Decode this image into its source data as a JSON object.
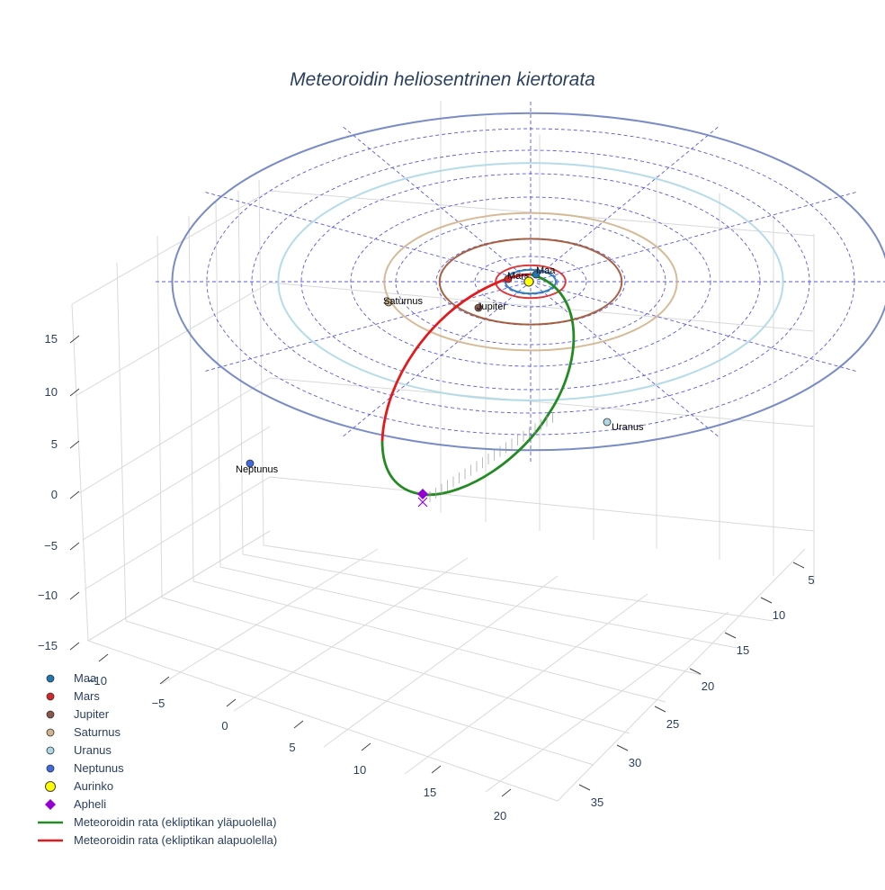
{
  "chart_data": {
    "type": "scatter3d",
    "title": "Meteoroidin heliosentrinen kiertorata",
    "axes": {
      "z_ticks": [
        "15",
        "10",
        "5",
        "0",
        "−5",
        "−10",
        "−15"
      ],
      "x_ticks": [
        "−10",
        "−5",
        "0",
        "5",
        "10",
        "15",
        "20"
      ],
      "y_ticks": [
        "5",
        "10",
        "15",
        "20",
        "25",
        "30",
        "35"
      ],
      "grid": true
    },
    "planets": [
      {
        "name": "Maa",
        "label": "Maa",
        "orbit_radius_au": 1.0,
        "color": "#1f77b4",
        "orbit_color": "#1f77b4"
      },
      {
        "name": "Mars",
        "label": "Mars",
        "orbit_radius_au": 1.52,
        "color": "#d62728",
        "orbit_color": "#d62728"
      },
      {
        "name": "Jupiter",
        "label": "Jupiter",
        "orbit_radius_au": 5.2,
        "color": "#8c564b",
        "orbit_color": "#a0522d"
      },
      {
        "name": "Saturnus",
        "label": "Saturnus",
        "orbit_radius_au": 9.54,
        "color": "#d2b48c",
        "orbit_color": "#d2b48c"
      },
      {
        "name": "Uranus",
        "label": "Uranus",
        "orbit_radius_au": 19.2,
        "color": "#add8e6",
        "orbit_color": "#add8e6"
      },
      {
        "name": "Neptunus",
        "label": "Neptunus",
        "orbit_radius_au": 30.1,
        "color": "#4169e1",
        "orbit_color": "#6a7fbf"
      }
    ],
    "sun": {
      "name": "Aurinko",
      "color": "#ffff00"
    },
    "aphelion": {
      "name": "Apheli",
      "color": "#9400d3"
    },
    "meteoroid_orbit": {
      "above_name": "Meteoroidin rata (ekliptikan yläpuolella)",
      "below_name": "Meteoroidin rata (ekliptikan alapuolella)",
      "above_color": "#228b22",
      "below_color": "#e31a1c"
    },
    "legend": {
      "placement": "bottom-left",
      "entries": [
        {
          "label": "Maa",
          "symbol": "circle",
          "color": "#1f77b4"
        },
        {
          "label": "Mars",
          "symbol": "circle",
          "color": "#d62728"
        },
        {
          "label": "Jupiter",
          "symbol": "circle",
          "color": "#8c564b"
        },
        {
          "label": "Saturnus",
          "symbol": "circle",
          "color": "#d2b48c"
        },
        {
          "label": "Uranus",
          "symbol": "circle",
          "color": "#add8e6"
        },
        {
          "label": "Neptunus",
          "symbol": "circle",
          "color": "#4169e1"
        },
        {
          "label": "Aurinko",
          "symbol": "sun",
          "color": "#ffff00"
        },
        {
          "label": "Apheli",
          "symbol": "diamond",
          "color": "#9400d3"
        },
        {
          "label": "Meteoroidin rata (ekliptikan yläpuolella)",
          "symbol": "line",
          "color": "#228b22"
        },
        {
          "label": "Meteoroidin rata (ekliptikan alapuolella)",
          "symbol": "line",
          "color": "#e31a1c"
        }
      ]
    }
  }
}
